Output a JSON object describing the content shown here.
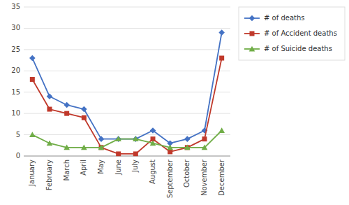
{
  "chart_data": {
    "type": "line",
    "categories": [
      "January",
      "February",
      "March",
      "April",
      "May",
      "June",
      "July",
      "August",
      "September",
      "October",
      "November",
      "December"
    ],
    "series": [
      {
        "name": "# of deaths",
        "color": "#4472C4",
        "marker": "diamond",
        "values": [
          23,
          14,
          12,
          11,
          4,
          4,
          4,
          6,
          3,
          4,
          6,
          29
        ]
      },
      {
        "name": "# of Accident deaths",
        "color": "#C0392B",
        "marker": "square",
        "values": [
          18,
          11,
          10,
          9,
          2,
          0.5,
          0.5,
          4,
          1,
          2,
          4,
          23
        ]
      },
      {
        "name": "# of Suicide deaths",
        "color": "#70AD47",
        "marker": "triangle",
        "values": [
          5,
          3,
          2,
          2,
          2,
          4,
          4,
          3,
          2,
          2,
          2,
          6
        ]
      }
    ],
    "ylim": [
      0,
      35
    ],
    "yticks": [
      0,
      5,
      10,
      15,
      20,
      25,
      30,
      35
    ],
    "grid": true,
    "legend": "right"
  }
}
